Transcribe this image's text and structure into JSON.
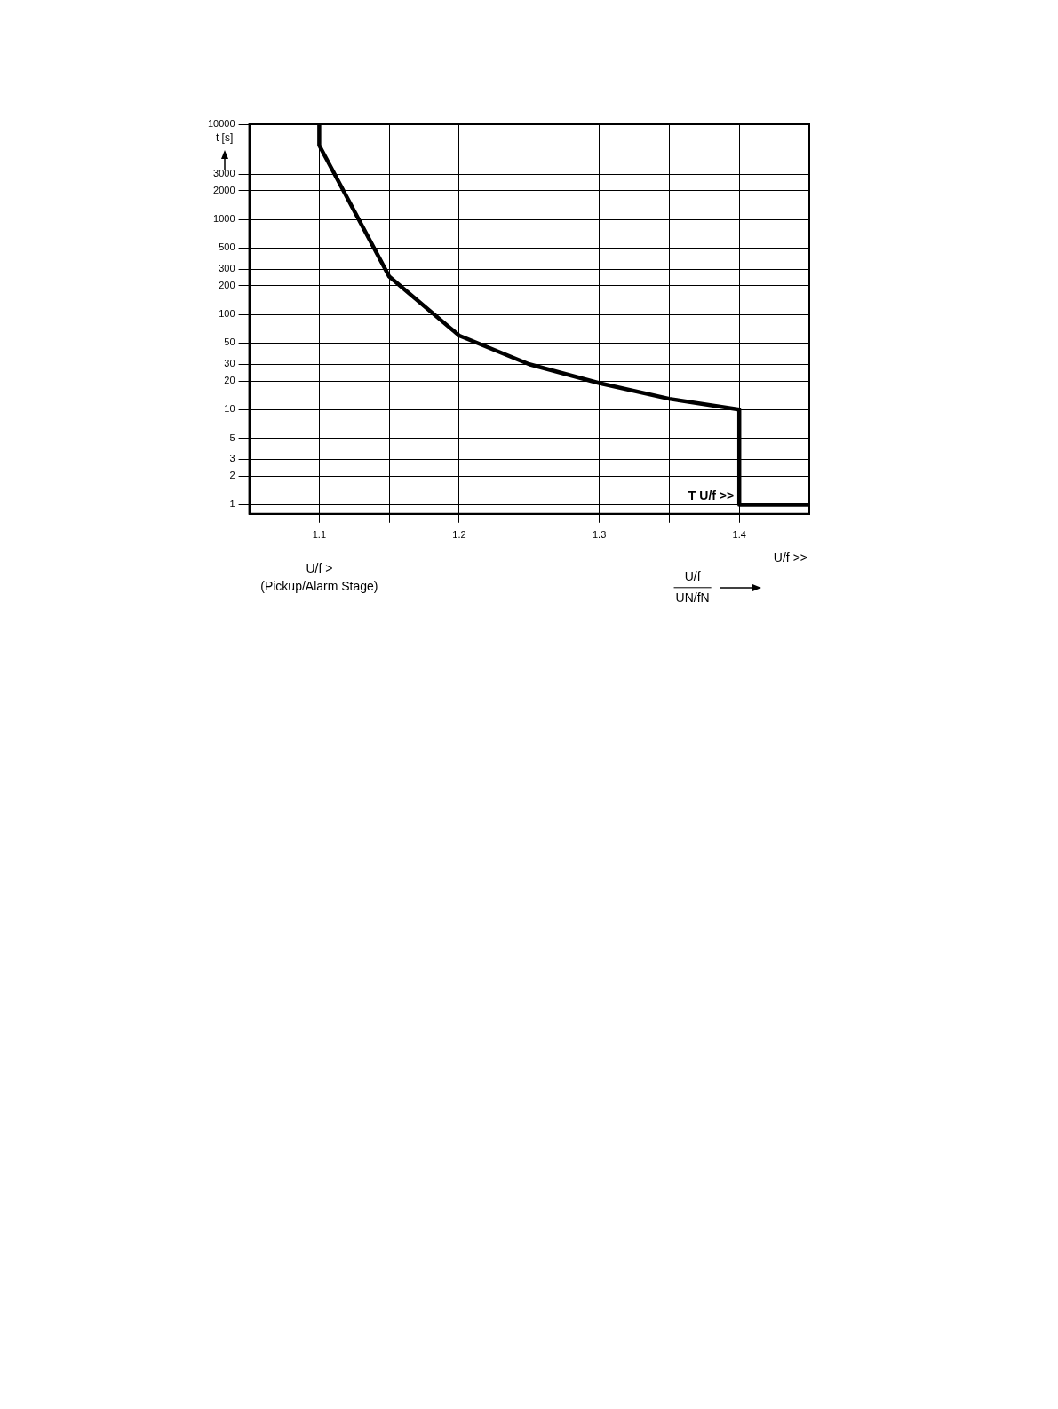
{
  "chart_data": {
    "type": "line",
    "ylabel": "t [s]",
    "xlabel": "U/f\nUN/fN",
    "x": [
      1.1,
      1.1,
      1.15,
      1.2,
      1.25,
      1.3,
      1.35,
      1.4,
      1.4,
      1.45
    ],
    "series": [
      {
        "color": "#000000",
        "values": [
          10000,
          6000,
          250,
          60,
          30,
          19,
          13,
          10,
          1,
          1
        ]
      }
    ],
    "xlim": [
      1.05,
      1.45
    ],
    "xticks": [
      1.1,
      {
        "value": 1.15,
        "label": null
      },
      1.2,
      {
        "value": 1.25,
        "label": null
      },
      1.3,
      {
        "value": 1.35,
        "label": null
      },
      1.4
    ],
    "ylim": [
      0.8,
      10000
    ],
    "yticks": [
      1,
      2,
      3,
      5,
      10,
      20,
      30,
      50,
      100,
      200,
      300,
      500,
      1000,
      2000,
      3000,
      10000
    ],
    "log": "y",
    "grid": true,
    "legend": false,
    "marker": "none",
    "line_style": "solid",
    "annotations": [
      {
        "text": "T U/f >>",
        "x": 1.4,
        "y": 1
      },
      "U/f >\n(Pickup/Alarm Stage)",
      "U/f >>"
    ]
  }
}
